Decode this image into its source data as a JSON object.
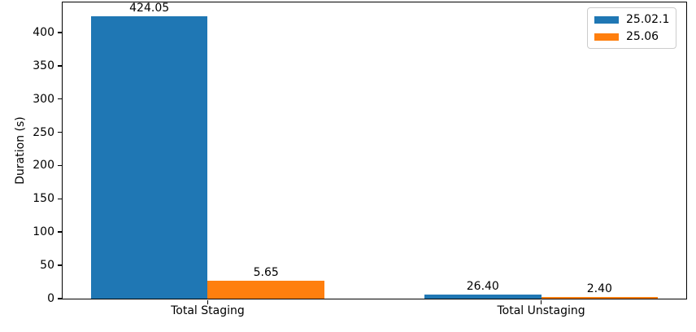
{
  "chart_data": {
    "type": "bar",
    "title": "",
    "xlabel": "",
    "ylabel": "Duration (s)",
    "categories": [
      "Total Staging",
      "Total Unstaging"
    ],
    "series": [
      {
        "name": "25.02.1",
        "color": "#1f77b4",
        "values": [
          424.05,
          5.65
        ]
      },
      {
        "name": "25.06",
        "color": "#ff7f0e",
        "values": [
          26.4,
          2.4
        ]
      }
    ],
    "bar_value_labels": [
      [
        "424.05",
        "26.40"
      ],
      [
        "5.65",
        "2.40"
      ]
    ],
    "ylim": [
      0,
      445.25
    ],
    "xlim": [
      -0.435,
      1.435
    ],
    "yticks": [
      0,
      50,
      100,
      150,
      200,
      250,
      300,
      350,
      400
    ],
    "bar_width": 0.35,
    "group_offsets": [
      -0.175,
      0.175
    ],
    "grid": false,
    "legend_position": "upper right"
  },
  "colors": {
    "axis": "#000000",
    "text": "#000000",
    "legend_border": "#cccccc",
    "background": "#ffffff"
  }
}
